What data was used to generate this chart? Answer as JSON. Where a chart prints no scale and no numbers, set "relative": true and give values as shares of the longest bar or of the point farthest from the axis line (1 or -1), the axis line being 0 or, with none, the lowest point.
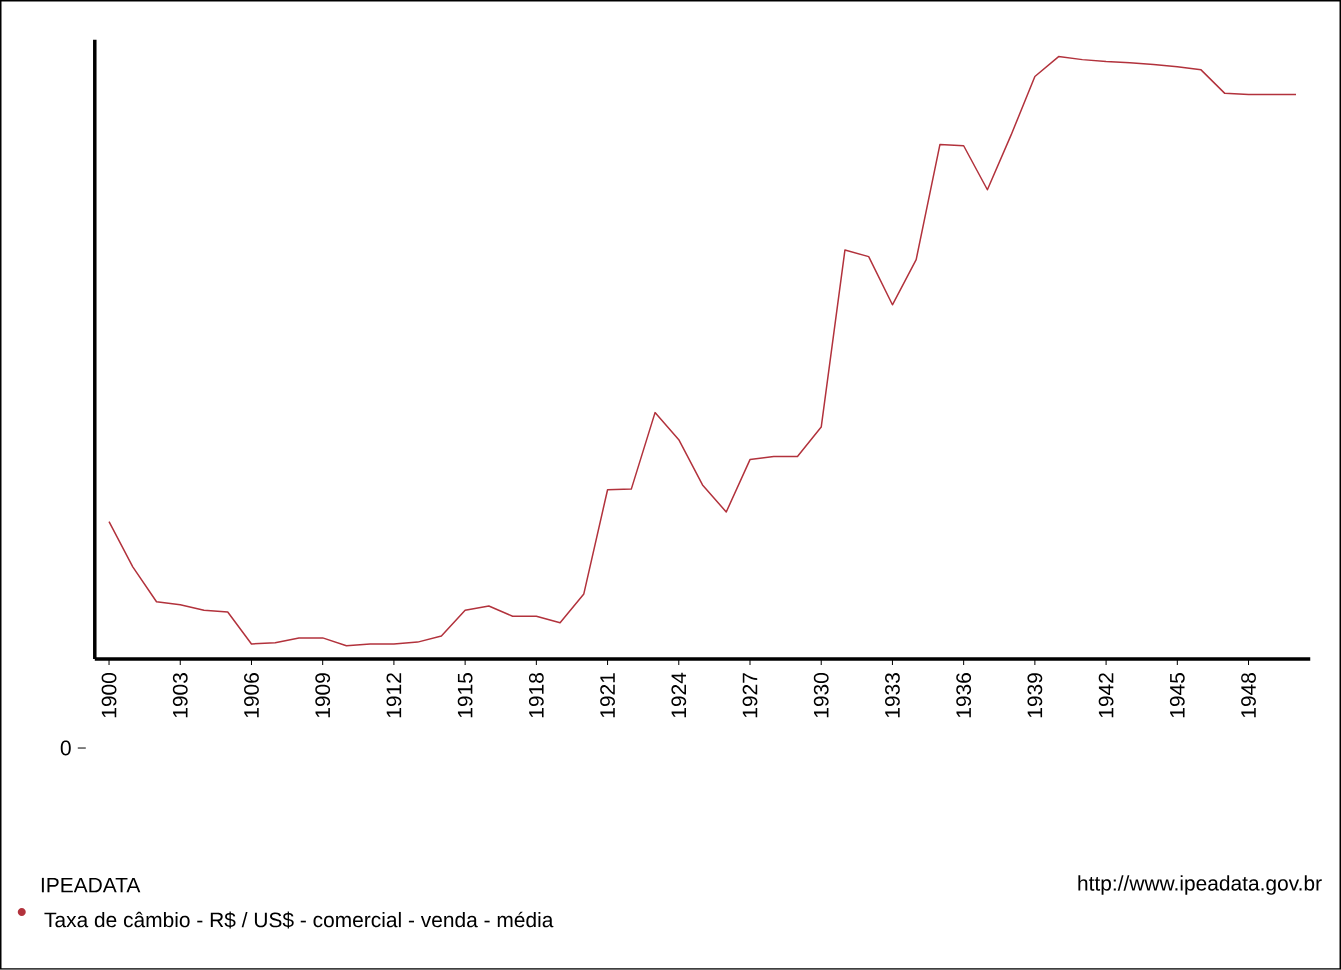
{
  "chart_data": {
    "type": "line",
    "relative": true,
    "x": [
      1900,
      1901,
      1902,
      1903,
      1904,
      1905,
      1906,
      1907,
      1908,
      1909,
      1910,
      1911,
      1912,
      1913,
      1914,
      1915,
      1916,
      1917,
      1918,
      1919,
      1920,
      1921,
      1922,
      1923,
      1924,
      1925,
      1926,
      1927,
      1928,
      1929,
      1930,
      1931,
      1932,
      1933,
      1934,
      1935,
      1936,
      1937,
      1938,
      1939,
      1940,
      1941,
      1942,
      1943,
      1944,
      1945,
      1946,
      1947,
      1948,
      1949,
      1950
    ],
    "xlim": [
      1899.4,
      1950.6
    ],
    "xticks": [
      1900,
      1903,
      1906,
      1909,
      1912,
      1915,
      1918,
      1921,
      1924,
      1927,
      1930,
      1933,
      1936,
      1939,
      1942,
      1945,
      1948
    ],
    "series": [
      {
        "name": "Taxa de câmbio - R$ / US$ - comercial - venda - média",
        "color": "#b2323c",
        "values": [
          0.228,
          0.153,
          0.095,
          0.09,
          0.081,
          0.078,
          0.025,
          0.027,
          0.035,
          0.035,
          0.022,
          0.025,
          0.025,
          0.028,
          0.038,
          0.081,
          0.088,
          0.071,
          0.071,
          0.06,
          0.108,
          0.281,
          0.282,
          0.409,
          0.364,
          0.289,
          0.244,
          0.331,
          0.336,
          0.336,
          0.385,
          0.679,
          0.668,
          0.588,
          0.663,
          0.854,
          0.852,
          0.779,
          0.87,
          0.967,
          1,
          0.995,
          0.992,
          0.99,
          0.987,
          0.983,
          0.978,
          0.939,
          0.937,
          0.937,
          0.937
        ]
      }
    ],
    "legend": "bottom left",
    "legend_title": "IPEADATA",
    "grid": false,
    "marker": "none",
    "line_style": "solid",
    "annotations": [
      "0",
      "http://www.ipeadata.gov.br"
    ]
  }
}
